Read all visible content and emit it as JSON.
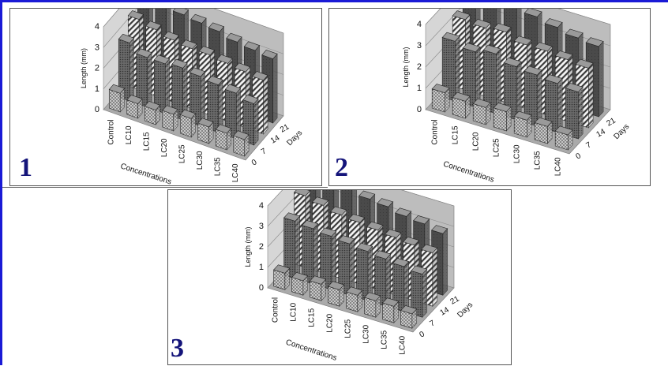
{
  "figure": {
    "panels": [
      {
        "number": "1"
      },
      {
        "number": "2"
      },
      {
        "number": "3"
      }
    ]
  },
  "chart_data": [
    {
      "type": "bar",
      "projection": "3d",
      "ylabel": "Length (mm)",
      "xlabel": "Concentrations",
      "zlabel": "Days",
      "ylim": [
        0,
        4
      ],
      "yticks": [
        "0",
        "1",
        "2",
        "3",
        "4"
      ],
      "categories": [
        "Control",
        "LC10",
        "LC15",
        "LC20",
        "LC25",
        "LC30",
        "LC35",
        "LC40"
      ],
      "series": [
        {
          "name": "0",
          "pattern": "dots",
          "values": [
            0.9,
            0.7,
            0.7,
            0.8,
            0.9,
            0.8,
            0.8,
            0.8
          ]
        },
        {
          "name": "7",
          "pattern": "dark",
          "values": [
            2.8,
            2.4,
            2.4,
            2.5,
            2.4,
            2.3,
            2.2,
            2.0
          ]
        },
        {
          "name": "14",
          "pattern": "hatch",
          "values": [
            3.4,
            3.2,
            3.0,
            2.9,
            2.9,
            2.8,
            2.7,
            2.6
          ]
        },
        {
          "name": "21",
          "pattern": "solid",
          "values": [
            4.0,
            3.8,
            3.7,
            3.6,
            3.5,
            3.3,
            3.2,
            3.1
          ]
        }
      ]
    },
    {
      "type": "bar",
      "projection": "3d",
      "ylabel": "Length (mm)",
      "xlabel": "Concentrations",
      "zlabel": "Days",
      "ylim": [
        0,
        4
      ],
      "yticks": [
        "0",
        "1",
        "2",
        "3",
        "4"
      ],
      "categories": [
        "Control",
        "LC15",
        "LC20",
        "LC25",
        "LC30",
        "LC35",
        "LC40"
      ],
      "series": [
        {
          "name": "0",
          "pattern": "dots",
          "values": [
            0.9,
            0.8,
            0.8,
            0.9,
            0.8,
            0.8,
            0.7
          ]
        },
        {
          "name": "7",
          "pattern": "dark",
          "values": [
            2.8,
            2.6,
            2.8,
            2.5,
            2.4,
            2.3,
            2.2
          ]
        },
        {
          "name": "14",
          "pattern": "hatch",
          "values": [
            3.3,
            3.2,
            3.3,
            3.0,
            3.0,
            2.9,
            2.8
          ]
        },
        {
          "name": "21",
          "pattern": "solid",
          "values": [
            4.0,
            3.9,
            4.0,
            3.8,
            3.6,
            3.4,
            3.3
          ]
        }
      ]
    },
    {
      "type": "bar",
      "projection": "3d",
      "ylabel": "Length (mm)",
      "xlabel": "Concentrations",
      "zlabel": "Days",
      "ylim": [
        0,
        4
      ],
      "yticks": [
        "0",
        "1",
        "2",
        "3",
        "4"
      ],
      "categories": [
        "Control",
        "LC10",
        "LC15",
        "LC20",
        "LC25",
        "LC30",
        "LC35",
        "LC40"
      ],
      "series": [
        {
          "name": "0",
          "pattern": "dots",
          "values": [
            0.8,
            0.7,
            0.8,
            0.8,
            0.8,
            0.8,
            0.8,
            0.7
          ]
        },
        {
          "name": "7",
          "pattern": "dark",
          "values": [
            2.8,
            2.7,
            2.6,
            2.5,
            2.4,
            2.3,
            2.2,
            2.1
          ]
        },
        {
          "name": "14",
          "pattern": "hatch",
          "values": [
            3.5,
            3.3,
            3.1,
            3.0,
            2.9,
            2.8,
            2.7,
            2.6
          ]
        },
        {
          "name": "21",
          "pattern": "solid",
          "values": [
            4.0,
            3.9,
            3.8,
            3.6,
            3.5,
            3.3,
            3.2,
            3.0
          ]
        }
      ]
    }
  ]
}
